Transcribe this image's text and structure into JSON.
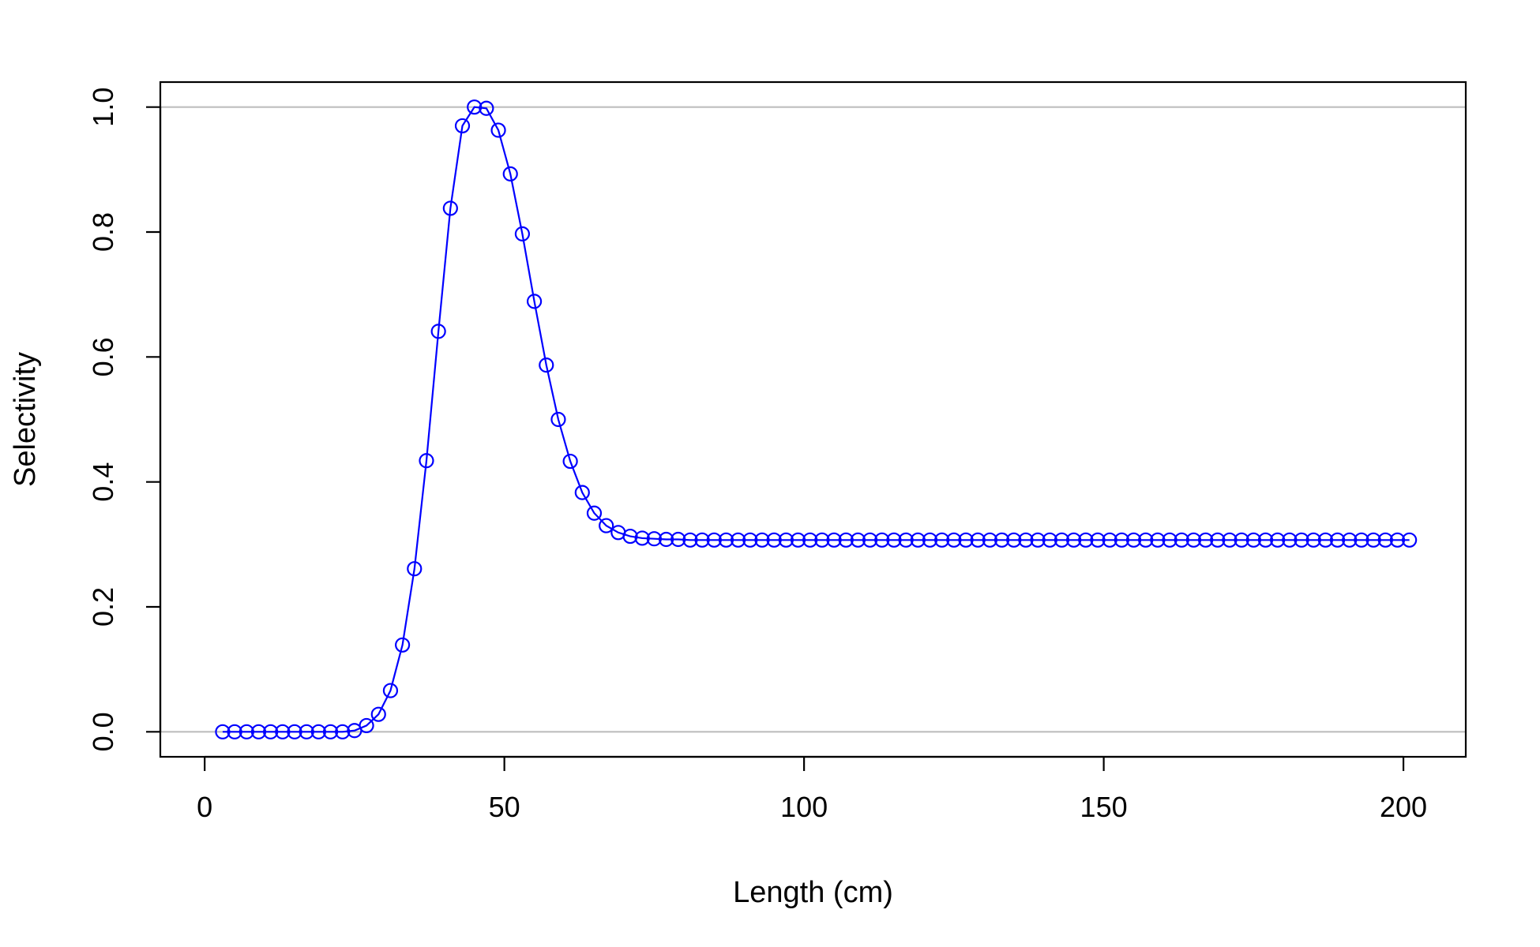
{
  "chart_data": {
    "type": "line",
    "title": "",
    "xlabel": "Length (cm)",
    "ylabel": "Selectivity",
    "xlim": [
      -7.4,
      210.4
    ],
    "ylim": [
      -0.04,
      1.04
    ],
    "xticks": [
      0,
      50,
      100,
      150,
      200
    ],
    "xtick_labels": [
      "0",
      "50",
      "100",
      "150",
      "200"
    ],
    "yticks": [
      0,
      0.2,
      0.4,
      0.6,
      0.8,
      1
    ],
    "ytick_labels": [
      "0.0",
      "0.2",
      "0.4",
      "0.6",
      "0.8",
      "1.0"
    ],
    "reference_lines_y": [
      0,
      1
    ],
    "grid": false,
    "legend": "none",
    "colors": {
      "series": "#0000ff",
      "reference": "#bebebe",
      "axis": "#000000"
    },
    "series": [
      {
        "marker": "open-circle",
        "x": [
          3,
          5,
          7,
          9,
          11,
          13,
          15,
          17,
          19,
          21,
          23,
          25,
          27,
          29,
          31,
          33,
          35,
          37,
          39,
          41,
          43,
          45,
          47,
          49,
          51,
          53,
          55,
          57,
          59,
          61,
          63,
          65,
          67,
          69,
          71,
          73,
          75,
          77,
          79,
          81,
          83,
          85,
          87,
          89,
          91,
          93,
          95,
          97,
          99,
          101,
          103,
          105,
          107,
          109,
          111,
          113,
          115,
          117,
          119,
          121,
          123,
          125,
          127,
          129,
          131,
          133,
          135,
          137,
          139,
          141,
          143,
          145,
          147,
          149,
          151,
          153,
          155,
          157,
          159,
          161,
          163,
          165,
          167,
          169,
          171,
          173,
          175,
          177,
          179,
          181,
          183,
          185,
          187,
          189,
          191,
          193,
          195,
          197,
          199,
          201
        ],
        "y": [
          0,
          0,
          0,
          0,
          0,
          0,
          0,
          0,
          0,
          0,
          0,
          0.002,
          0.01,
          0.028,
          0.066,
          0.139,
          0.261,
          0.434,
          0.641,
          0.838,
          0.97,
          1.0,
          0.998,
          0.963,
          0.893,
          0.797,
          0.689,
          0.587,
          0.5,
          0.433,
          0.383,
          0.35,
          0.33,
          0.319,
          0.313,
          0.31,
          0.309,
          0.308,
          0.308,
          0.307,
          0.307,
          0.307,
          0.307,
          0.307,
          0.307,
          0.307,
          0.307,
          0.307,
          0.307,
          0.307,
          0.307,
          0.307,
          0.307,
          0.307,
          0.307,
          0.307,
          0.307,
          0.307,
          0.307,
          0.307,
          0.307,
          0.307,
          0.307,
          0.307,
          0.307,
          0.307,
          0.307,
          0.307,
          0.307,
          0.307,
          0.307,
          0.307,
          0.307,
          0.307,
          0.307,
          0.307,
          0.307,
          0.307,
          0.307,
          0.307,
          0.307,
          0.307,
          0.307,
          0.307,
          0.307,
          0.307,
          0.307,
          0.307,
          0.307,
          0.307,
          0.307,
          0.307,
          0.307,
          0.307,
          0.307,
          0.307,
          0.307,
          0.307,
          0.307,
          0.307
        ]
      }
    ]
  }
}
